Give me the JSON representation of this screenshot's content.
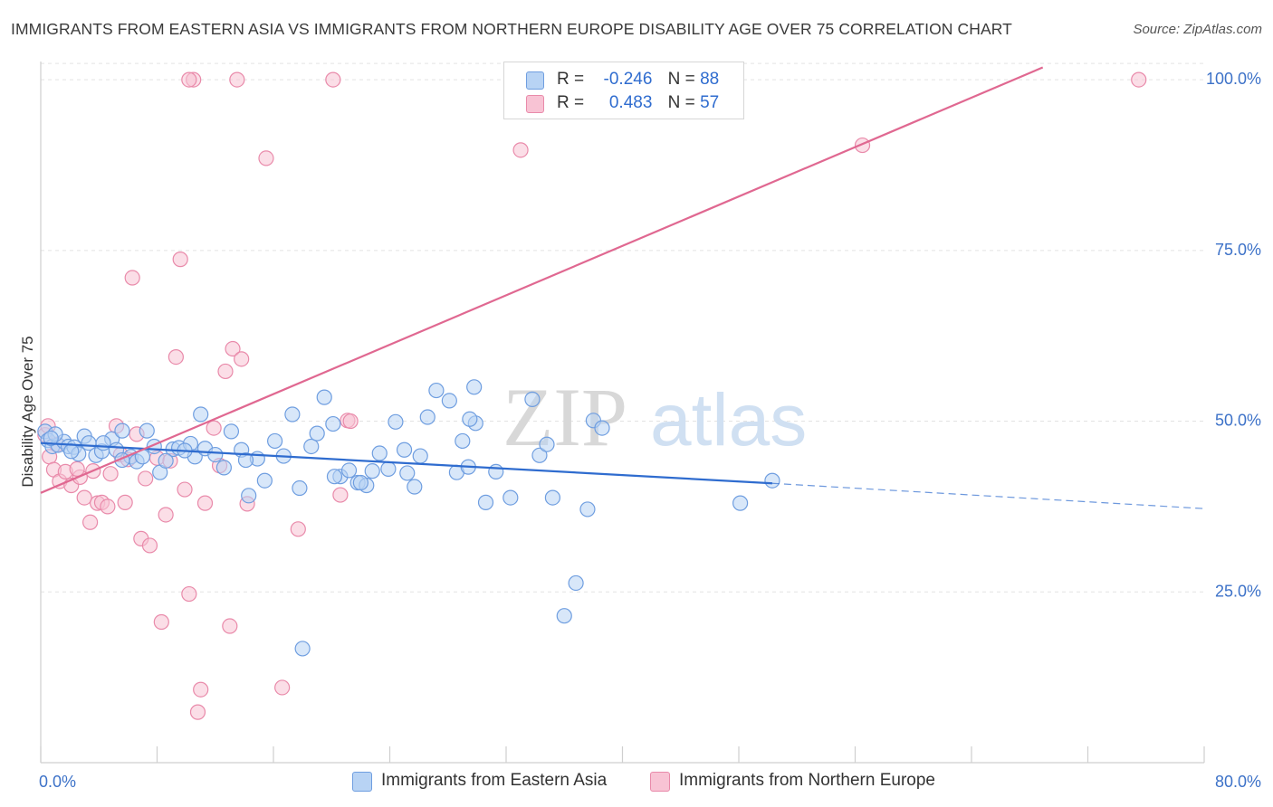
{
  "title": "IMMIGRANTS FROM EASTERN ASIA VS IMMIGRANTS FROM NORTHERN EUROPE DISABILITY AGE OVER 75 CORRELATION CHART",
  "source": "Source: ZipAtlas.com",
  "watermark": {
    "zip": "ZIP",
    "atlas": "atlas"
  },
  "colors": {
    "blue_fill": "#b8d3f4",
    "blue_stroke": "#6f9ee0",
    "blue_line": "#2f6ccf",
    "pink_fill": "#f8c3d4",
    "pink_stroke": "#e98aaa",
    "pink_line": "#e06891",
    "axis_text": "#3d72c8",
    "grid": "#e3e3e3"
  },
  "legend": {
    "r_label": "R =",
    "n_label": "N =",
    "rows": [
      {
        "r": "-0.246",
        "n": "88"
      },
      {
        "r": "0.483",
        "n": "57"
      }
    ]
  },
  "chart_data": {
    "type": "scatter",
    "title": "IMMIGRANTS FROM EASTERN ASIA VS IMMIGRANTS FROM NORTHERN EUROPE DISABILITY AGE OVER 75 CORRELATION CHART",
    "xlabel": "",
    "ylabel": "Disability Age Over 75",
    "xlim": [
      0,
      80
    ],
    "ylim": [
      0,
      102
    ],
    "x_tick_labels": [
      "0.0%",
      "80.0%"
    ],
    "y_tick_labels": [
      "25.0%",
      "50.0%",
      "75.0%",
      "100.0%"
    ],
    "y_ticks": [
      25,
      50,
      75,
      100
    ],
    "grid": true,
    "legend_position": "top-center",
    "series": [
      {
        "name": "Immigrants from Eastern Asia",
        "r": -0.246,
        "n": 88,
        "trend": {
          "x0": 0,
          "y0": 46.8,
          "x1": 50.3,
          "y1": 40.9,
          "dash_to_x": 80,
          "dash_to_y": 37.2
        },
        "points": [
          [
            0.3,
            48.5
          ],
          [
            0.5,
            47.2
          ],
          [
            0.8,
            46.3
          ],
          [
            1.2,
            46.5
          ],
          [
            1.6,
            47.0
          ],
          [
            1.9,
            46.3
          ],
          [
            2.3,
            46.2
          ],
          [
            2.6,
            45.2
          ],
          [
            3.0,
            47.8
          ],
          [
            3.3,
            46.8
          ],
          [
            3.8,
            45.0
          ],
          [
            4.2,
            45.6
          ],
          [
            4.9,
            47.4
          ],
          [
            5.2,
            45.8
          ],
          [
            5.6,
            48.6
          ],
          [
            6.2,
            44.8
          ],
          [
            6.6,
            44.1
          ],
          [
            7.3,
            48.6
          ],
          [
            7.8,
            46.3
          ],
          [
            8.2,
            42.5
          ],
          [
            9.1,
            45.9
          ],
          [
            9.5,
            46.1
          ],
          [
            10.3,
            46.7
          ],
          [
            10.6,
            44.8
          ],
          [
            11.3,
            46.0
          ],
          [
            12.0,
            45.1
          ],
          [
            12.6,
            43.2
          ],
          [
            13.1,
            48.5
          ],
          [
            13.8,
            45.8
          ],
          [
            14.3,
            39.1
          ],
          [
            14.9,
            44.5
          ],
          [
            15.4,
            41.3
          ],
          [
            16.1,
            47.1
          ],
          [
            16.7,
            44.9
          ],
          [
            17.3,
            51.0
          ],
          [
            17.8,
            40.2
          ],
          [
            18.6,
            46.3
          ],
          [
            19.0,
            48.2
          ],
          [
            19.5,
            53.5
          ],
          [
            20.1,
            49.6
          ],
          [
            20.6,
            41.9
          ],
          [
            21.2,
            42.8
          ],
          [
            21.8,
            41.0
          ],
          [
            22.4,
            40.6
          ],
          [
            22.8,
            42.7
          ],
          [
            23.3,
            45.3
          ],
          [
            23.9,
            43.0
          ],
          [
            24.4,
            49.9
          ],
          [
            25.0,
            45.8
          ],
          [
            25.7,
            40.4
          ],
          [
            26.1,
            44.9
          ],
          [
            26.6,
            50.6
          ],
          [
            27.2,
            54.5
          ],
          [
            28.1,
            53.0
          ],
          [
            28.6,
            42.5
          ],
          [
            29.0,
            47.1
          ],
          [
            29.4,
            43.3
          ],
          [
            29.9,
            49.7
          ],
          [
            30.6,
            38.1
          ],
          [
            31.3,
            42.6
          ],
          [
            32.3,
            38.8
          ],
          [
            33.8,
            53.2
          ],
          [
            34.3,
            45.0
          ],
          [
            34.8,
            46.6
          ],
          [
            35.2,
            38.8
          ],
          [
            36.8,
            26.3
          ],
          [
            37.6,
            37.1
          ],
          [
            38.0,
            50.1
          ],
          [
            38.6,
            49.0
          ],
          [
            36.0,
            21.5
          ],
          [
            29.8,
            55.0
          ],
          [
            29.5,
            50.3
          ],
          [
            5.6,
            44.3
          ],
          [
            1.0,
            48.1
          ],
          [
            0.7,
            47.5
          ],
          [
            2.1,
            45.6
          ],
          [
            7.0,
            44.8
          ],
          [
            9.9,
            45.7
          ],
          [
            18.0,
            16.7
          ],
          [
            11.0,
            51.0
          ],
          [
            22.0,
            41.0
          ],
          [
            48.1,
            38.0
          ],
          [
            50.3,
            41.3
          ],
          [
            4.3,
            46.8
          ],
          [
            8.6,
            44.2
          ],
          [
            14.1,
            44.3
          ],
          [
            20.2,
            41.9
          ],
          [
            25.2,
            42.4
          ]
        ]
      },
      {
        "name": "Immigrants from Northern Europe",
        "r": 0.483,
        "n": 57,
        "trend": {
          "x0": 0,
          "y0": 39.5,
          "x1": 68.9,
          "y1": 101.8
        },
        "points": [
          [
            0.3,
            48.0
          ],
          [
            0.6,
            44.8
          ],
          [
            0.9,
            42.9
          ],
          [
            1.3,
            41.2
          ],
          [
            1.7,
            42.6
          ],
          [
            2.1,
            40.6
          ],
          [
            2.7,
            41.8
          ],
          [
            3.0,
            38.8
          ],
          [
            3.4,
            35.2
          ],
          [
            3.6,
            42.7
          ],
          [
            3.9,
            38.0
          ],
          [
            4.2,
            38.1
          ],
          [
            4.6,
            37.5
          ],
          [
            4.8,
            42.3
          ],
          [
            5.2,
            49.3
          ],
          [
            5.5,
            45.1
          ],
          [
            6.0,
            44.4
          ],
          [
            6.3,
            71.0
          ],
          [
            6.6,
            48.1
          ],
          [
            6.9,
            32.8
          ],
          [
            7.2,
            41.6
          ],
          [
            7.5,
            31.8
          ],
          [
            8.0,
            44.6
          ],
          [
            8.3,
            20.6
          ],
          [
            8.6,
            36.3
          ],
          [
            8.9,
            44.2
          ],
          [
            9.3,
            59.4
          ],
          [
            9.6,
            73.7
          ],
          [
            9.9,
            40.0
          ],
          [
            10.2,
            24.7
          ],
          [
            10.5,
            100.0
          ],
          [
            10.8,
            7.4
          ],
          [
            11.0,
            10.7
          ],
          [
            11.3,
            38.0
          ],
          [
            11.9,
            49.0
          ],
          [
            12.3,
            43.5
          ],
          [
            12.7,
            57.3
          ],
          [
            13.0,
            20.0
          ],
          [
            13.2,
            60.6
          ],
          [
            13.5,
            100.0
          ],
          [
            13.8,
            59.1
          ],
          [
            14.2,
            37.9
          ],
          [
            15.5,
            88.5
          ],
          [
            16.6,
            11.0
          ],
          [
            17.7,
            34.2
          ],
          [
            20.1,
            100.0
          ],
          [
            20.6,
            39.2
          ],
          [
            21.1,
            50.1
          ],
          [
            21.3,
            50.0
          ],
          [
            33.0,
            89.7
          ],
          [
            56.5,
            90.4
          ],
          [
            75.5,
            100.0
          ],
          [
            10.2,
            100.0
          ],
          [
            2.5,
            43.0
          ],
          [
            5.8,
            38.1
          ],
          [
            1.1,
            46.6
          ],
          [
            0.5,
            49.3
          ]
        ]
      }
    ]
  }
}
